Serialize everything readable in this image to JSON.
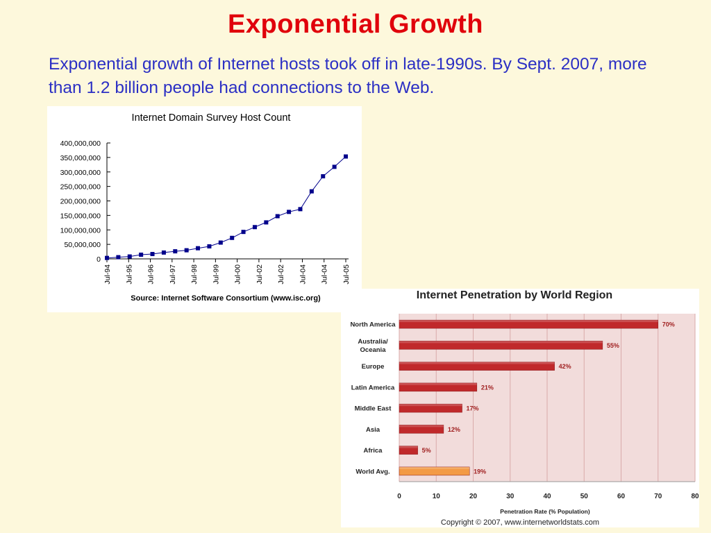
{
  "slide": {
    "title": "Exponential Growth",
    "body": "Exponential growth of Internet hosts took off in late-1990s. By Sept. 2007, more than 1.2 billion people had connections to the Web."
  },
  "chart_data": [
    {
      "type": "line",
      "title": "Internet Domain Survey Host Count",
      "source": "Source: Internet Software Consortium (www.isc.org)",
      "xlabel": "",
      "ylabel": "",
      "ylim": [
        0,
        400000000
      ],
      "yticks": [
        0,
        50000000,
        100000000,
        150000000,
        200000000,
        250000000,
        300000000,
        350000000,
        400000000
      ],
      "ytick_labels": [
        "0",
        "50,000,000",
        "100,000,000",
        "150,000,000",
        "200,000,000",
        "250,000,000",
        "300,000,000",
        "350,000,000",
        "400,000,000"
      ],
      "xtick_labels": [
        "Jul-94",
        "Jul-95",
        "Jul-96",
        "Jul-97",
        "Jul-98",
        "Jul-99",
        "Jul-00",
        "Jul-02",
        "Jul-02",
        "Jul-04",
        "Jul-04",
        "Jul-05"
      ],
      "grid": false,
      "marker_color": "#00008b",
      "line_color": "#00008b",
      "x": [
        "Jul-94",
        "Jan-95",
        "Jul-95",
        "Jan-96",
        "Jul-96",
        "Jan-97",
        "Jul-97",
        "Jan-98",
        "Jul-98",
        "Jan-99",
        "Jul-99",
        "Jan-00",
        "Jul-00",
        "Jan-01",
        "Jul-01",
        "Jan-02",
        "Jul-02",
        "Jan-03",
        "Jan-04",
        "Jul-04",
        "Jan-05",
        "Jul-05"
      ],
      "values": [
        3200000,
        5800000,
        8200000,
        14400000,
        16700000,
        21800000,
        26100000,
        29700000,
        36700000,
        43200000,
        56200000,
        72400000,
        93000000,
        109600000,
        125900000,
        147300000,
        162100000,
        171600000,
        233100000,
        285100000,
        317600000,
        353300000
      ]
    },
    {
      "type": "bar",
      "orientation": "horizontal",
      "title": "Internet Penetration by World Region",
      "xlabel": "Penetration Rate (% Population)",
      "xlim": [
        0,
        80
      ],
      "xticks": [
        0,
        10,
        20,
        30,
        40,
        50,
        60,
        70,
        80
      ],
      "grid": true,
      "background": "#f2dcdb",
      "categories": [
        "North America",
        "Australia/ Oceania",
        "Europe",
        "Latin America",
        "Middle East",
        "Asia",
        "Africa",
        "World Avg."
      ],
      "category_lines": [
        [
          "North America"
        ],
        [
          "Australia/",
          "Oceania"
        ],
        [
          "Europe"
        ],
        [
          "Latin America"
        ],
        [
          "Middle East"
        ],
        [
          "Asia"
        ],
        [
          "Africa"
        ],
        [
          "World Avg."
        ]
      ],
      "values": [
        70,
        55,
        42,
        21,
        17,
        12,
        5,
        19
      ],
      "value_labels": [
        "70%",
        "55%",
        "42%",
        "21%",
        "17%",
        "12%",
        "5%",
        "19%"
      ],
      "bar_colors": [
        "#c0292b",
        "#c0292b",
        "#c0292b",
        "#c0292b",
        "#c0292b",
        "#c0292b",
        "#c0292b",
        "#f39a45"
      ],
      "copyright": "Copyright  © 2007,  www.internetworldstats.com"
    }
  ]
}
